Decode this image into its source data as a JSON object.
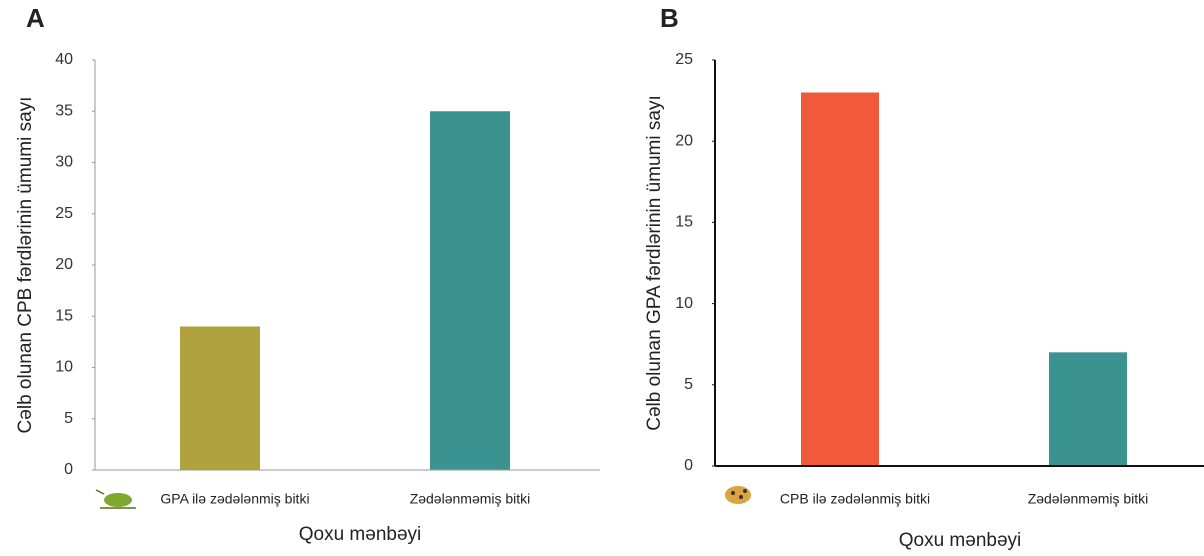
{
  "chart_data": [
    {
      "type": "bar",
      "panel": "A",
      "ylabel": "Cəlb olunan CPB fərdlərinin ümumi sayı",
      "xlabel": "Qoxu mənbəyi",
      "categories": [
        "GPA ilə zədələnmiş bitki",
        "Zədələnməmiş bitki"
      ],
      "values": [
        14,
        35
      ],
      "colors": [
        "#b0a33d",
        "#3a9391"
      ],
      "ylim": [
        0,
        40
      ],
      "yticks": [
        0,
        5,
        10,
        15,
        20,
        25,
        30,
        35,
        40
      ]
    },
    {
      "type": "bar",
      "panel": "B",
      "ylabel": "Cəlb olunan GPA fərdlərinin ümumi sayı",
      "xlabel": "Qoxu mənbəyi",
      "categories": [
        "CPB ilə zədələnmiş bitki",
        "Zədələnməmiş bitki"
      ],
      "values": [
        23,
        7
      ],
      "colors": [
        "#f05a3a",
        "#3a9391"
      ],
      "ylim": [
        0,
        25
      ],
      "yticks": [
        0,
        5,
        10,
        15,
        20,
        25
      ]
    }
  ]
}
